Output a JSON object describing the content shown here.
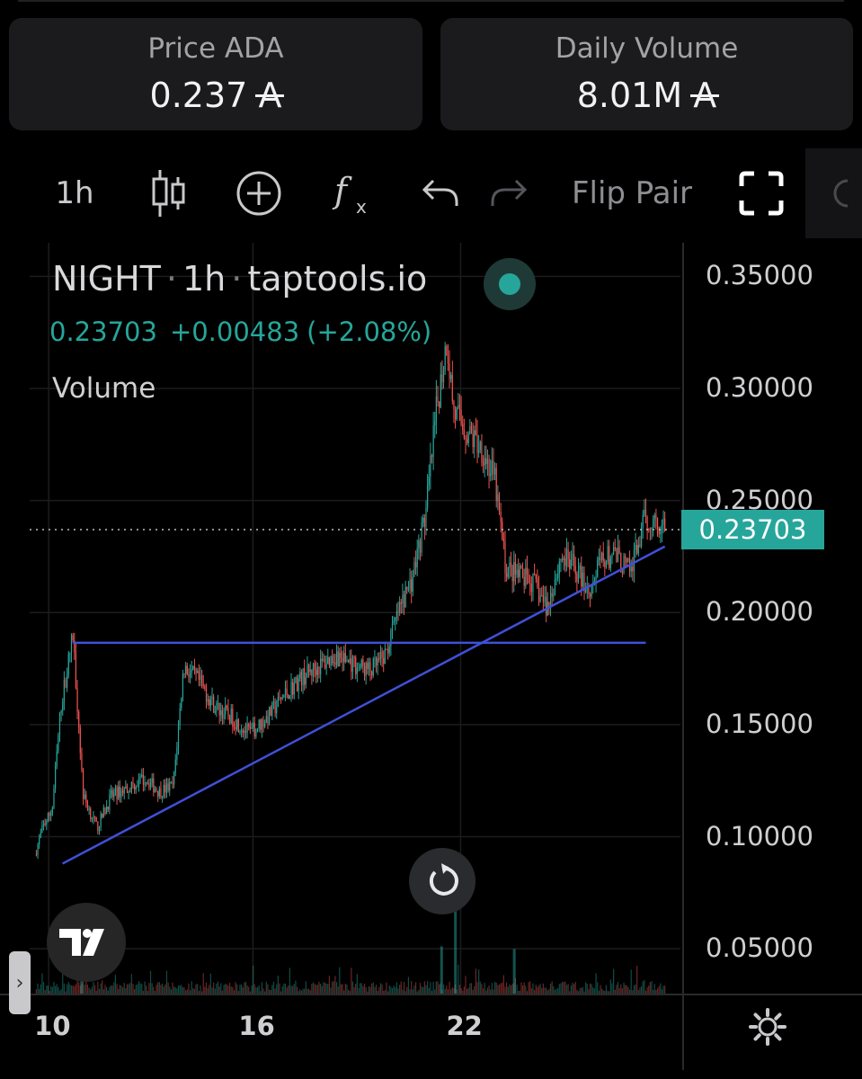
{
  "stats": {
    "price": {
      "label": "Price ADA",
      "value": "0.237",
      "currency": "A"
    },
    "volume": {
      "label": "Daily Volume",
      "value": "8.01M",
      "currency": "A"
    }
  },
  "toolbar": {
    "interval": "1h",
    "flip_label": "Flip Pair",
    "icons": [
      "candles-icon",
      "plus-circle-icon",
      "fx-indicators-icon",
      "undo-icon",
      "redo-icon",
      "fullscreen-icon",
      "settings-icon"
    ]
  },
  "legend": {
    "symbol": "NIGHT",
    "interval": "1h",
    "source": "taptools.io",
    "status_color": "#26a69a",
    "last": "0.23703",
    "change": "+0.00483",
    "change_pct": "(+2.08%)",
    "volume_label": "Volume"
  },
  "colors": {
    "up": "#26a69a",
    "down": "#ef5350",
    "trendline": "#3f51d8",
    "background": "#000000"
  },
  "chart_data": {
    "type": "candlestick",
    "symbol": "NIGHT",
    "interval": "1h",
    "y_ticks": [
      "0.35000",
      "0.30000",
      "0.25000",
      "0.20000",
      "0.15000",
      "0.10000",
      "0.05000"
    ],
    "ylim": [
      0.03,
      0.365
    ],
    "x_ticks": [
      {
        "label": "10",
        "t": 10.1
      },
      {
        "label": "16",
        "t": 16
      },
      {
        "label": "22",
        "t": 22
      }
    ],
    "xlim": [
      9.55,
      28.35
    ],
    "last_price": "0.23703",
    "price_path": [
      [
        9.7,
        0.092
      ],
      [
        9.95,
        0.105
      ],
      [
        10.2,
        0.112
      ],
      [
        10.45,
        0.158
      ],
      [
        10.8,
        0.19
      ],
      [
        11.1,
        0.118
      ],
      [
        11.5,
        0.104
      ],
      [
        11.9,
        0.118
      ],
      [
        12.4,
        0.122
      ],
      [
        12.9,
        0.126
      ],
      [
        13.3,
        0.12
      ],
      [
        13.7,
        0.123
      ],
      [
        14.0,
        0.176
      ],
      [
        14.4,
        0.17
      ],
      [
        14.9,
        0.158
      ],
      [
        15.4,
        0.153
      ],
      [
        15.9,
        0.146
      ],
      [
        16.4,
        0.153
      ],
      [
        16.9,
        0.163
      ],
      [
        17.4,
        0.171
      ],
      [
        17.9,
        0.176
      ],
      [
        18.4,
        0.181
      ],
      [
        18.9,
        0.177
      ],
      [
        19.4,
        0.174
      ],
      [
        19.8,
        0.18
      ],
      [
        20.2,
        0.2
      ],
      [
        20.6,
        0.215
      ],
      [
        21.0,
        0.245
      ],
      [
        21.3,
        0.29
      ],
      [
        21.6,
        0.322
      ],
      [
        21.8,
        0.29
      ],
      [
        22.2,
        0.28
      ],
      [
        22.6,
        0.274
      ],
      [
        23.0,
        0.258
      ],
      [
        23.3,
        0.22
      ],
      [
        23.7,
        0.216
      ],
      [
        24.1,
        0.213
      ],
      [
        24.5,
        0.202
      ],
      [
        24.9,
        0.225
      ],
      [
        25.3,
        0.22
      ],
      [
        25.7,
        0.21
      ],
      [
        26.1,
        0.224
      ],
      [
        26.5,
        0.225
      ],
      [
        26.9,
        0.218
      ],
      [
        27.3,
        0.24
      ],
      [
        27.6,
        0.242
      ],
      [
        27.9,
        0.237
      ]
    ],
    "volume_scale": [
      0,
      0.18
    ],
    "volume_spikes": [
      {
        "t": 21.85,
        "v": 0.178
      },
      {
        "t": 21.45,
        "v": 0.09
      },
      {
        "t": 23.55,
        "v": 0.085
      },
      {
        "t": 11.05,
        "v": 0.05
      }
    ],
    "trendlines": [
      {
        "t1": 10.5,
        "p1": 0.088,
        "t2": 27.9,
        "p2": 0.2295
      },
      {
        "t1": 10.8,
        "p1": 0.1865,
        "t2": 27.35,
        "p2": 0.1865
      }
    ]
  }
}
